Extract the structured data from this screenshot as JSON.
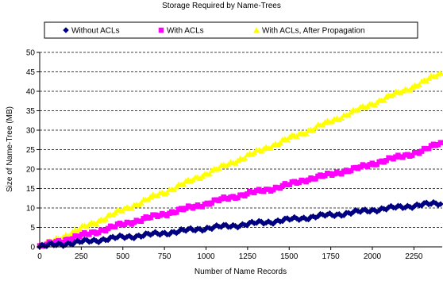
{
  "chart_data": {
    "type": "scatter",
    "title": "Storage Required by Name-Trees",
    "xlabel": "Number of Name Records",
    "ylabel": "Size of Name-Tree (MB)",
    "xlim": [
      0,
      2420
    ],
    "ylim": [
      0,
      50
    ],
    "xticks": [
      0,
      250,
      500,
      750,
      1000,
      1250,
      1500,
      1750,
      2000,
      2250
    ],
    "yticks": [
      0,
      5,
      10,
      15,
      20,
      25,
      30,
      35,
      40,
      45,
      50
    ],
    "grid": "horizontal-dashed",
    "legend_position": "top",
    "series": [
      {
        "name": "Without ACLs",
        "color": "#000080",
        "marker": "diamond",
        "x": [
          0,
          100,
          200,
          300,
          400,
          500,
          600,
          700,
          800,
          900,
          1000,
          1100,
          1200,
          1300,
          1400,
          1500,
          1600,
          1700,
          1800,
          1900,
          2000,
          2100,
          2200,
          2300,
          2400
        ],
        "y": [
          0,
          0.6,
          1.0,
          1.5,
          2.0,
          2.5,
          2.9,
          3.3,
          3.8,
          4.3,
          4.8,
          5.2,
          5.6,
          6.1,
          6.5,
          7.0,
          7.5,
          8.0,
          8.4,
          8.9,
          9.5,
          9.9,
          10.4,
          10.8,
          11.2
        ]
      },
      {
        "name": "With ACLs",
        "color": "#ff00ff",
        "marker": "square",
        "x": [
          0,
          100,
          200,
          300,
          400,
          500,
          600,
          700,
          800,
          900,
          1000,
          1100,
          1200,
          1300,
          1400,
          1500,
          1600,
          1700,
          1800,
          1900,
          2000,
          2100,
          2200,
          2300,
          2400
        ],
        "y": [
          0,
          1.2,
          2.3,
          3.4,
          4.6,
          5.8,
          6.9,
          7.9,
          9.0,
          10.0,
          11.1,
          12.2,
          13.2,
          14.1,
          15.0,
          16.0,
          17.3,
          18.1,
          19.2,
          20.0,
          21.4,
          22.4,
          23.6,
          24.5,
          26.7
        ]
      },
      {
        "name": "With ACLs, After Propagation",
        "color": "#ffff00",
        "marker": "triangle",
        "x": [
          0,
          100,
          200,
          300,
          400,
          500,
          600,
          700,
          800,
          900,
          1000,
          1100,
          1200,
          1300,
          1400,
          1500,
          1600,
          1700,
          1800,
          1900,
          2000,
          2100,
          2200,
          2300,
          2400
        ],
        "y": [
          0,
          1.9,
          3.8,
          5.7,
          7.6,
          9.5,
          11.3,
          13.2,
          15.0,
          16.9,
          18.8,
          20.6,
          22.5,
          24.3,
          26.1,
          27.9,
          29.6,
          31.4,
          33.2,
          35.0,
          36.8,
          38.6,
          40.4,
          42.2,
          44.5
        ]
      }
    ]
  }
}
